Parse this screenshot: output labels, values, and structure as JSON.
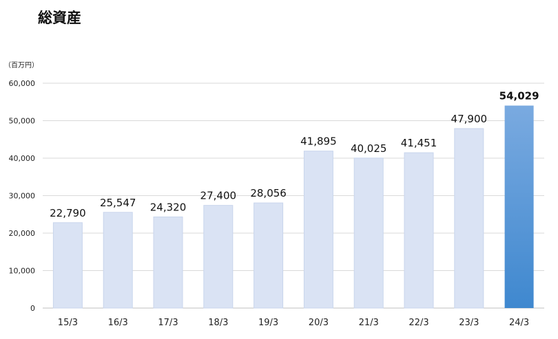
{
  "chart_data": {
    "type": "bar",
    "title": "総資産",
    "unit_label": "（百万円）",
    "categories": [
      "15/3",
      "16/3",
      "17/3",
      "18/3",
      "19/3",
      "20/3",
      "21/3",
      "22/3",
      "23/3",
      "24/3"
    ],
    "values": [
      22790,
      25547,
      24320,
      27400,
      28056,
      41895,
      40025,
      41451,
      47900,
      54029
    ],
    "value_labels": [
      "22,790",
      "25,547",
      "24,320",
      "27,400",
      "28,056",
      "41,895",
      "40,025",
      "41,451",
      "47,900",
      "54,029"
    ],
    "y_ticks": [
      "0",
      "10,000",
      "20,000",
      "30,000",
      "40,000",
      "50,000",
      "60,000"
    ],
    "ylim": [
      0,
      60000
    ],
    "grid": true,
    "highlight_index": 9,
    "colors": {
      "bar": "#dae3f4",
      "bar_edge": "#c9d5ec",
      "highlight_top": "#7aaae0",
      "highlight_bottom": "#3f88cf",
      "grid": "#d9d9d9"
    }
  }
}
